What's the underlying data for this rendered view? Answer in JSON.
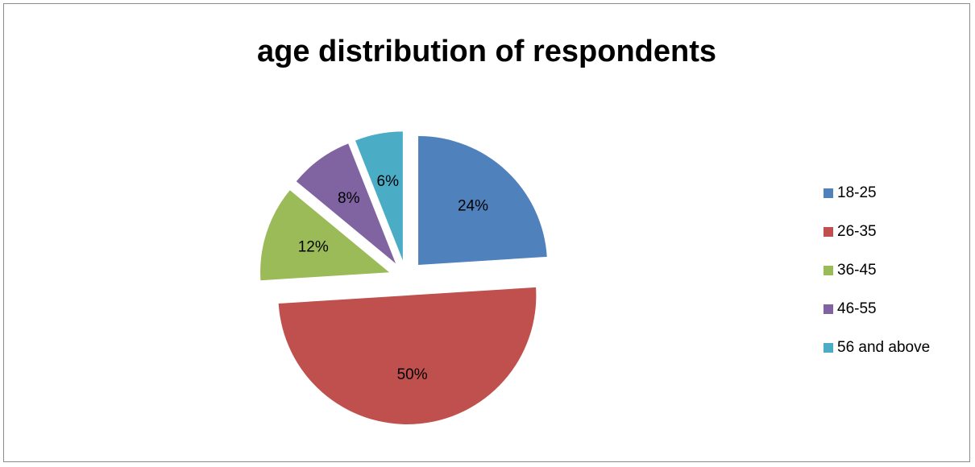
{
  "chart_data": {
    "type": "pie",
    "title": "age distribution of respondents",
    "categories": [
      "18-25",
      "26-35",
      "36-45",
      "46-55",
      "56 and above"
    ],
    "values": [
      24,
      50,
      12,
      8,
      6
    ],
    "data_labels": [
      "24%",
      "50%",
      "12%",
      "8%",
      "6%"
    ],
    "colors": [
      "#4f81bd",
      "#c0504d",
      "#9bbb59",
      "#8064a2",
      "#4bacc6"
    ],
    "exploded": true,
    "legend_position": "right"
  }
}
